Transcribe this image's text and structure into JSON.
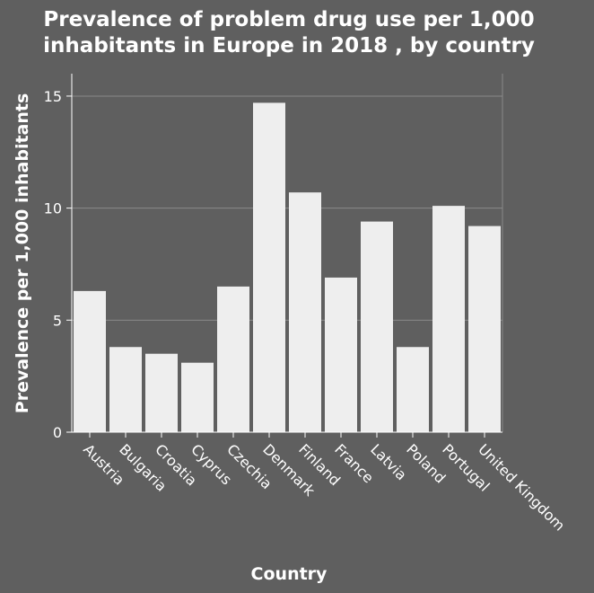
{
  "chart_data": {
    "type": "bar",
    "title_lines": [
      "Prevalence of problem drug use per 1,000",
      "inhabitants in Europe in 2018 , by country"
    ],
    "xlabel": "Country",
    "ylabel": "Prevalence per 1,000 inhabitants",
    "categories": [
      "Austria",
      "Bulgaria",
      "Croatia",
      "Cyprus",
      "Czechia",
      "Denmark",
      "Finland",
      "France",
      "Latvia",
      "Poland",
      "Portugal",
      "United Kingdom"
    ],
    "values": [
      6.3,
      3.8,
      3.5,
      3.1,
      6.5,
      14.7,
      10.7,
      6.9,
      9.4,
      3.8,
      10.1,
      9.2
    ],
    "ylim": [
      0,
      15
    ],
    "yticks": [
      0,
      5,
      10,
      15
    ],
    "grid": true,
    "colors": {
      "background": "#5f5f5f",
      "bar": "#eeeeee",
      "grid": "#8a8a8a",
      "text": "#ffffff"
    }
  }
}
